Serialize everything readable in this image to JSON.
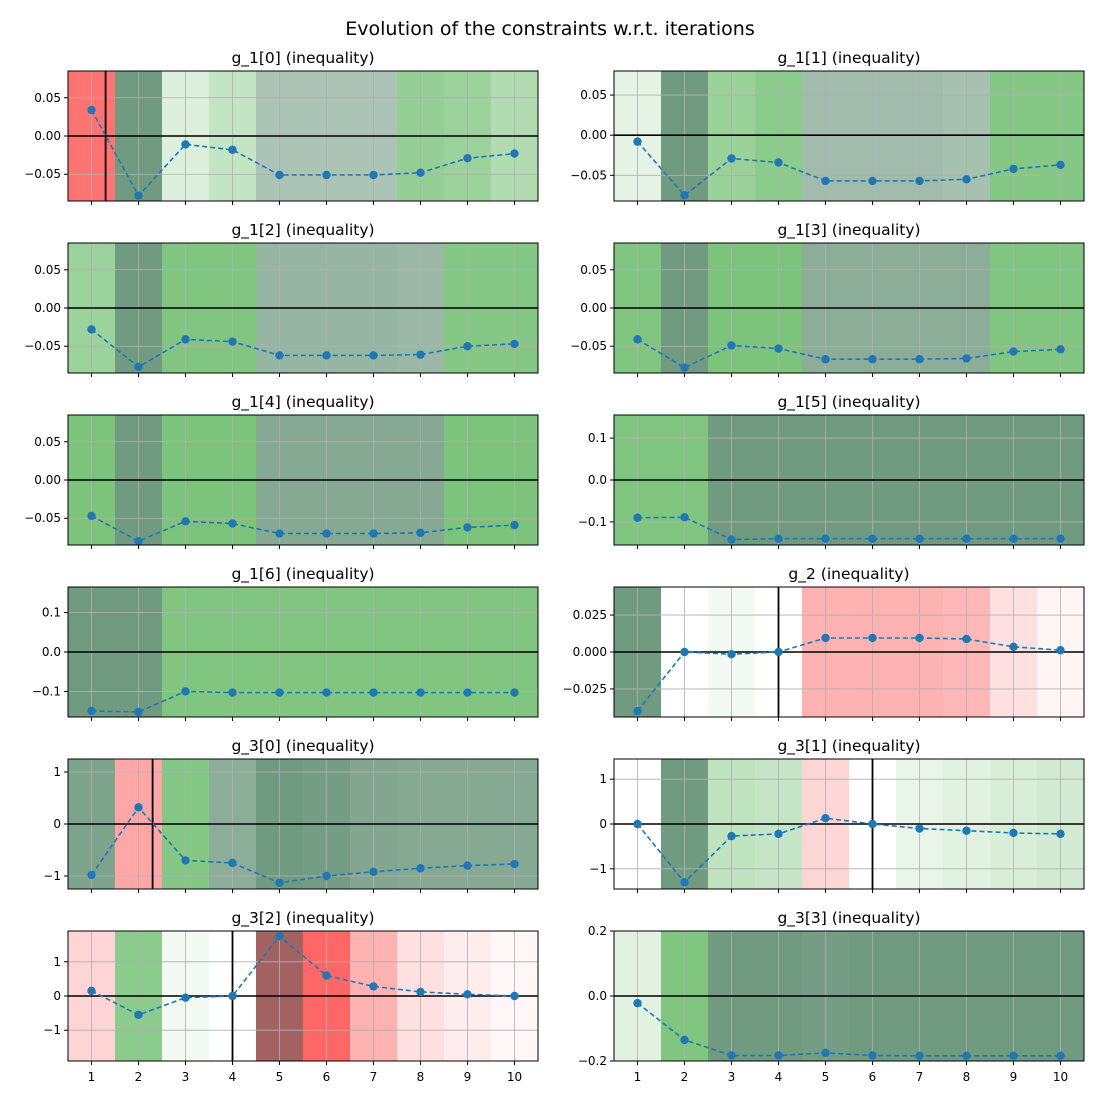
{
  "figure": {
    "title": "Evolution of the constraints w.r.t. iterations",
    "colors": {
      "line": "#1f77b4",
      "grid": "#b0b0b0",
      "zero_line": "#000000",
      "violation": "#ff0000",
      "feasible": "#2ca02c",
      "dark_feasible": "#2e6b46",
      "dark_violation": "#7a1f1f"
    }
  },
  "chart_data": [
    {
      "type": "line",
      "title": "g_1[0] (inequality)",
      "x": [
        1,
        2,
        3,
        4,
        5,
        6,
        7,
        8,
        9,
        10
      ],
      "values": [
        0.034,
        -0.078,
        -0.011,
        -0.018,
        -0.051,
        -0.051,
        -0.051,
        -0.048,
        -0.029,
        -0.023
      ],
      "ylim": [
        -0.085,
        0.085
      ],
      "yticks": [
        0.05,
        0.0,
        -0.05
      ],
      "yticklabels": [
        "0.05",
        "0.00",
        "−0.05"
      ],
      "marker_x": 1.3,
      "bands": [
        {
          "color": "#ff0000",
          "opacity": 0.55
        },
        {
          "color": "#2e6b46",
          "opacity": 0.68
        },
        {
          "color": "#2ca02c",
          "opacity": 0.16
        },
        {
          "color": "#2ca02c",
          "opacity": 0.28
        },
        {
          "color": "#2e6b46",
          "opacity": 0.4
        },
        {
          "color": "#2e6b46",
          "opacity": 0.4
        },
        {
          "color": "#2e6b46",
          "opacity": 0.4
        },
        {
          "color": "#2ca02c",
          "opacity": 0.5
        },
        {
          "color": "#2ca02c",
          "opacity": 0.47
        },
        {
          "color": "#2ca02c",
          "opacity": 0.37
        }
      ]
    },
    {
      "type": "line",
      "title": "g_1[1] (inequality)",
      "x": [
        1,
        2,
        3,
        4,
        5,
        6,
        7,
        8,
        9,
        10
      ],
      "values": [
        -0.008,
        -0.075,
        -0.029,
        -0.034,
        -0.057,
        -0.057,
        -0.057,
        -0.055,
        -0.042,
        -0.037
      ],
      "ylim": [
        -0.082,
        0.08
      ],
      "yticks": [
        0.05,
        0.0,
        -0.05
      ],
      "yticklabels": [
        "0.05",
        "0.00",
        "−0.05"
      ],
      "bands": [
        {
          "color": "#2ca02c",
          "opacity": 0.12
        },
        {
          "color": "#2e6b46",
          "opacity": 0.68
        },
        {
          "color": "#2ca02c",
          "opacity": 0.48
        },
        {
          "color": "#2ca02c",
          "opacity": 0.55
        },
        {
          "color": "#2e6b46",
          "opacity": 0.45
        },
        {
          "color": "#2e6b46",
          "opacity": 0.45
        },
        {
          "color": "#2e6b46",
          "opacity": 0.45
        },
        {
          "color": "#2e6b46",
          "opacity": 0.42
        },
        {
          "color": "#2ca02c",
          "opacity": 0.58
        },
        {
          "color": "#2ca02c",
          "opacity": 0.58
        }
      ]
    },
    {
      "type": "line",
      "title": "g_1[2] (inequality)",
      "x": [
        1,
        2,
        3,
        4,
        5,
        6,
        7,
        8,
        9,
        10
      ],
      "values": [
        -0.028,
        -0.077,
        -0.041,
        -0.044,
        -0.062,
        -0.062,
        -0.062,
        -0.061,
        -0.05,
        -0.047
      ],
      "ylim": [
        -0.085,
        0.085
      ],
      "yticks": [
        0.05,
        0.0,
        -0.05
      ],
      "yticklabels": [
        "0.05",
        "0.00",
        "−0.05"
      ],
      "bands": [
        {
          "color": "#2ca02c",
          "opacity": 0.47
        },
        {
          "color": "#2e6b46",
          "opacity": 0.68
        },
        {
          "color": "#2ca02c",
          "opacity": 0.6
        },
        {
          "color": "#2ca02c",
          "opacity": 0.6
        },
        {
          "color": "#2e6b46",
          "opacity": 0.5
        },
        {
          "color": "#2e6b46",
          "opacity": 0.5
        },
        {
          "color": "#2e6b46",
          "opacity": 0.5
        },
        {
          "color": "#2e6b46",
          "opacity": 0.48
        },
        {
          "color": "#2ca02c",
          "opacity": 0.58
        },
        {
          "color": "#2ca02c",
          "opacity": 0.58
        }
      ]
    },
    {
      "type": "line",
      "title": "g_1[3] (inequality)",
      "x": [
        1,
        2,
        3,
        4,
        5,
        6,
        7,
        8,
        9,
        10
      ],
      "values": [
        -0.041,
        -0.078,
        -0.049,
        -0.053,
        -0.067,
        -0.067,
        -0.067,
        -0.066,
        -0.057,
        -0.054
      ],
      "ylim": [
        -0.085,
        0.085
      ],
      "yticks": [
        0.05,
        0.0,
        -0.05
      ],
      "yticklabels": [
        "0.05",
        "0.00",
        "−0.05"
      ],
      "bands": [
        {
          "color": "#2ca02c",
          "opacity": 0.6
        },
        {
          "color": "#2e6b46",
          "opacity": 0.68
        },
        {
          "color": "#2ca02c",
          "opacity": 0.62
        },
        {
          "color": "#2ca02c",
          "opacity": 0.62
        },
        {
          "color": "#2e6b46",
          "opacity": 0.55
        },
        {
          "color": "#2e6b46",
          "opacity": 0.55
        },
        {
          "color": "#2e6b46",
          "opacity": 0.55
        },
        {
          "color": "#2e6b46",
          "opacity": 0.55
        },
        {
          "color": "#2ca02c",
          "opacity": 0.6
        },
        {
          "color": "#2ca02c",
          "opacity": 0.6
        }
      ]
    },
    {
      "type": "line",
      "title": "g_1[4] (inequality)",
      "x": [
        1,
        2,
        3,
        4,
        5,
        6,
        7,
        8,
        9,
        10
      ],
      "values": [
        -0.047,
        -0.08,
        -0.054,
        -0.057,
        -0.07,
        -0.07,
        -0.07,
        -0.069,
        -0.062,
        -0.059
      ],
      "ylim": [
        -0.085,
        0.085
      ],
      "yticks": [
        0.05,
        0.0,
        -0.05
      ],
      "yticklabels": [
        "0.05",
        "0.00",
        "−0.05"
      ],
      "bands": [
        {
          "color": "#2ca02c",
          "opacity": 0.62
        },
        {
          "color": "#2e6b46",
          "opacity": 0.68
        },
        {
          "color": "#2ca02c",
          "opacity": 0.62
        },
        {
          "color": "#2ca02c",
          "opacity": 0.62
        },
        {
          "color": "#2e6b46",
          "opacity": 0.58
        },
        {
          "color": "#2e6b46",
          "opacity": 0.58
        },
        {
          "color": "#2e6b46",
          "opacity": 0.58
        },
        {
          "color": "#2e6b46",
          "opacity": 0.58
        },
        {
          "color": "#2ca02c",
          "opacity": 0.62
        },
        {
          "color": "#2ca02c",
          "opacity": 0.62
        }
      ]
    },
    {
      "type": "line",
      "title": "g_1[5] (inequality)",
      "x": [
        1,
        2,
        3,
        4,
        5,
        6,
        7,
        8,
        9,
        10
      ],
      "values": [
        -0.09,
        -0.089,
        -0.142,
        -0.14,
        -0.14,
        -0.14,
        -0.14,
        -0.14,
        -0.14,
        -0.14
      ],
      "ylim": [
        -0.155,
        0.155
      ],
      "yticks": [
        0.1,
        0.0,
        -0.1
      ],
      "yticklabels": [
        "0.1",
        "0.0",
        "−0.1"
      ],
      "bands": [
        {
          "color": "#2ca02c",
          "opacity": 0.6
        },
        {
          "color": "#2ca02c",
          "opacity": 0.6
        },
        {
          "color": "#2e6b46",
          "opacity": 0.68
        },
        {
          "color": "#2e6b46",
          "opacity": 0.68
        },
        {
          "color": "#2e6b46",
          "opacity": 0.68
        },
        {
          "color": "#2e6b46",
          "opacity": 0.68
        },
        {
          "color": "#2e6b46",
          "opacity": 0.68
        },
        {
          "color": "#2e6b46",
          "opacity": 0.68
        },
        {
          "color": "#2e6b46",
          "opacity": 0.68
        },
        {
          "color": "#2e6b46",
          "opacity": 0.68
        }
      ]
    },
    {
      "type": "line",
      "title": "g_1[6] (inequality)",
      "x": [
        1,
        2,
        3,
        4,
        5,
        6,
        7,
        8,
        9,
        10
      ],
      "values": [
        -0.15,
        -0.152,
        -0.1,
        -0.103,
        -0.103,
        -0.103,
        -0.103,
        -0.103,
        -0.103,
        -0.103
      ],
      "ylim": [
        -0.165,
        0.165
      ],
      "yticks": [
        0.1,
        0.0,
        -0.1
      ],
      "yticklabels": [
        "0.1",
        "0.0",
        "−0.1"
      ],
      "bands": [
        {
          "color": "#2e6b46",
          "opacity": 0.68
        },
        {
          "color": "#2e6b46",
          "opacity": 0.68
        },
        {
          "color": "#2ca02c",
          "opacity": 0.6
        },
        {
          "color": "#2ca02c",
          "opacity": 0.6
        },
        {
          "color": "#2ca02c",
          "opacity": 0.6
        },
        {
          "color": "#2ca02c",
          "opacity": 0.6
        },
        {
          "color": "#2ca02c",
          "opacity": 0.6
        },
        {
          "color": "#2ca02c",
          "opacity": 0.6
        },
        {
          "color": "#2ca02c",
          "opacity": 0.6
        },
        {
          "color": "#2ca02c",
          "opacity": 0.6
        }
      ]
    },
    {
      "type": "line",
      "title": "g_2 (inequality)",
      "x": [
        1,
        2,
        3,
        4,
        5,
        6,
        7,
        8,
        9,
        10
      ],
      "values": [
        -0.04,
        0.0,
        -0.0015,
        0.0,
        0.0095,
        0.0095,
        0.0095,
        0.0088,
        0.0035,
        0.0012
      ],
      "ylim": [
        -0.044,
        0.044
      ],
      "yticks": [
        0.025,
        0.0,
        -0.025
      ],
      "yticklabels": [
        "0.025",
        "0.000",
        "−0.025"
      ],
      "marker_x": 4.0,
      "bands": [
        {
          "color": "#2e6b46",
          "opacity": 0.68
        },
        {
          "color": "#ffffff",
          "opacity": 0.0
        },
        {
          "color": "#2ca02c",
          "opacity": 0.06
        },
        {
          "color": "#ffffff",
          "opacity": 0.0
        },
        {
          "color": "#ff0000",
          "opacity": 0.3
        },
        {
          "color": "#ff0000",
          "opacity": 0.3
        },
        {
          "color": "#ff0000",
          "opacity": 0.3
        },
        {
          "color": "#ff0000",
          "opacity": 0.28
        },
        {
          "color": "#ff0000",
          "opacity": 0.12
        },
        {
          "color": "#ff0000",
          "opacity": 0.04
        }
      ]
    },
    {
      "type": "line",
      "title": "g_3[0] (inequality)",
      "x": [
        1,
        2,
        3,
        4,
        5,
        6,
        7,
        8,
        9,
        10
      ],
      "values": [
        -0.98,
        0.32,
        -0.7,
        -0.75,
        -1.13,
        -1.0,
        -0.92,
        -0.85,
        -0.8,
        -0.77
      ],
      "ylim": [
        -1.25,
        1.25
      ],
      "yticks": [
        1,
        0,
        -1
      ],
      "yticklabels": [
        "1",
        "0",
        "−1"
      ],
      "marker_x": 2.3,
      "bands": [
        {
          "color": "#2e6b46",
          "opacity": 0.62
        },
        {
          "color": "#ff0000",
          "opacity": 0.35
        },
        {
          "color": "#2ca02c",
          "opacity": 0.58
        },
        {
          "color": "#2e6b46",
          "opacity": 0.55
        },
        {
          "color": "#2e6b46",
          "opacity": 0.68
        },
        {
          "color": "#2e6b46",
          "opacity": 0.66
        },
        {
          "color": "#2e6b46",
          "opacity": 0.6
        },
        {
          "color": "#2e6b46",
          "opacity": 0.58
        },
        {
          "color": "#2e6b46",
          "opacity": 0.58
        },
        {
          "color": "#2e6b46",
          "opacity": 0.58
        }
      ]
    },
    {
      "type": "line",
      "title": "g_3[1] (inequality)",
      "x": [
        1,
        2,
        3,
        4,
        5,
        6,
        7,
        8,
        9,
        10
      ],
      "values": [
        0.0,
        -1.3,
        -0.27,
        -0.22,
        0.13,
        0.0,
        -0.1,
        -0.15,
        -0.2,
        -0.22
      ],
      "ylim": [
        -1.45,
        1.45
      ],
      "yticks": [
        1,
        0,
        -1
      ],
      "yticklabels": [
        "1",
        "0",
        "−1"
      ],
      "marker_x": 6.0,
      "bands": [
        {
          "color": "#ffffff",
          "opacity": 0.0
        },
        {
          "color": "#2e6b46",
          "opacity": 0.68
        },
        {
          "color": "#2ca02c",
          "opacity": 0.3
        },
        {
          "color": "#2ca02c",
          "opacity": 0.27
        },
        {
          "color": "#ff0000",
          "opacity": 0.16
        },
        {
          "color": "#ffffff",
          "opacity": 0.0
        },
        {
          "color": "#2ca02c",
          "opacity": 0.1
        },
        {
          "color": "#2ca02c",
          "opacity": 0.14
        },
        {
          "color": "#2ca02c",
          "opacity": 0.18
        },
        {
          "color": "#2ca02c",
          "opacity": 0.22
        }
      ]
    },
    {
      "type": "line",
      "title": "g_3[2] (inequality)",
      "x": [
        1,
        2,
        3,
        4,
        5,
        6,
        7,
        8,
        9,
        10
      ],
      "values": [
        0.15,
        -0.55,
        -0.05,
        0.0,
        1.75,
        0.6,
        0.28,
        0.12,
        0.05,
        0.0
      ],
      "ylim": [
        -1.9,
        1.9
      ],
      "yticks": [
        1,
        0,
        -1
      ],
      "yticklabels": [
        "1",
        "0",
        "−1"
      ],
      "marker_x": 4.0,
      "bands": [
        {
          "color": "#ff0000",
          "opacity": 0.17
        },
        {
          "color": "#2ca02c",
          "opacity": 0.55
        },
        {
          "color": "#2ca02c",
          "opacity": 0.06
        },
        {
          "color": "#ffffff",
          "opacity": 0.0
        },
        {
          "color": "#7a1f1f",
          "opacity": 0.7
        },
        {
          "color": "#ff0000",
          "opacity": 0.6
        },
        {
          "color": "#ff0000",
          "opacity": 0.3
        },
        {
          "color": "#ff0000",
          "opacity": 0.12
        },
        {
          "color": "#ff0000",
          "opacity": 0.07
        },
        {
          "color": "#ff0000",
          "opacity": 0.03
        }
      ]
    },
    {
      "type": "line",
      "title": "g_3[3] (inequality)",
      "x": [
        1,
        2,
        3,
        4,
        5,
        6,
        7,
        8,
        9,
        10
      ],
      "values": [
        -0.022,
        -0.135,
        -0.183,
        -0.183,
        -0.175,
        -0.183,
        -0.184,
        -0.184,
        -0.184,
        -0.184
      ],
      "ylim": [
        -0.2,
        0.2
      ],
      "yticks": [
        0.2,
        0.0,
        -0.2
      ],
      "yticklabels": [
        "0.2",
        "0.0",
        "−0.2"
      ],
      "bands": [
        {
          "color": "#2ca02c",
          "opacity": 0.14
        },
        {
          "color": "#2ca02c",
          "opacity": 0.6
        },
        {
          "color": "#2e6b46",
          "opacity": 0.68
        },
        {
          "color": "#2e6b46",
          "opacity": 0.68
        },
        {
          "color": "#2e6b46",
          "opacity": 0.66
        },
        {
          "color": "#2e6b46",
          "opacity": 0.68
        },
        {
          "color": "#2e6b46",
          "opacity": 0.68
        },
        {
          "color": "#2e6b46",
          "opacity": 0.68
        },
        {
          "color": "#2e6b46",
          "opacity": 0.68
        },
        {
          "color": "#2e6b46",
          "opacity": 0.68
        }
      ]
    }
  ]
}
